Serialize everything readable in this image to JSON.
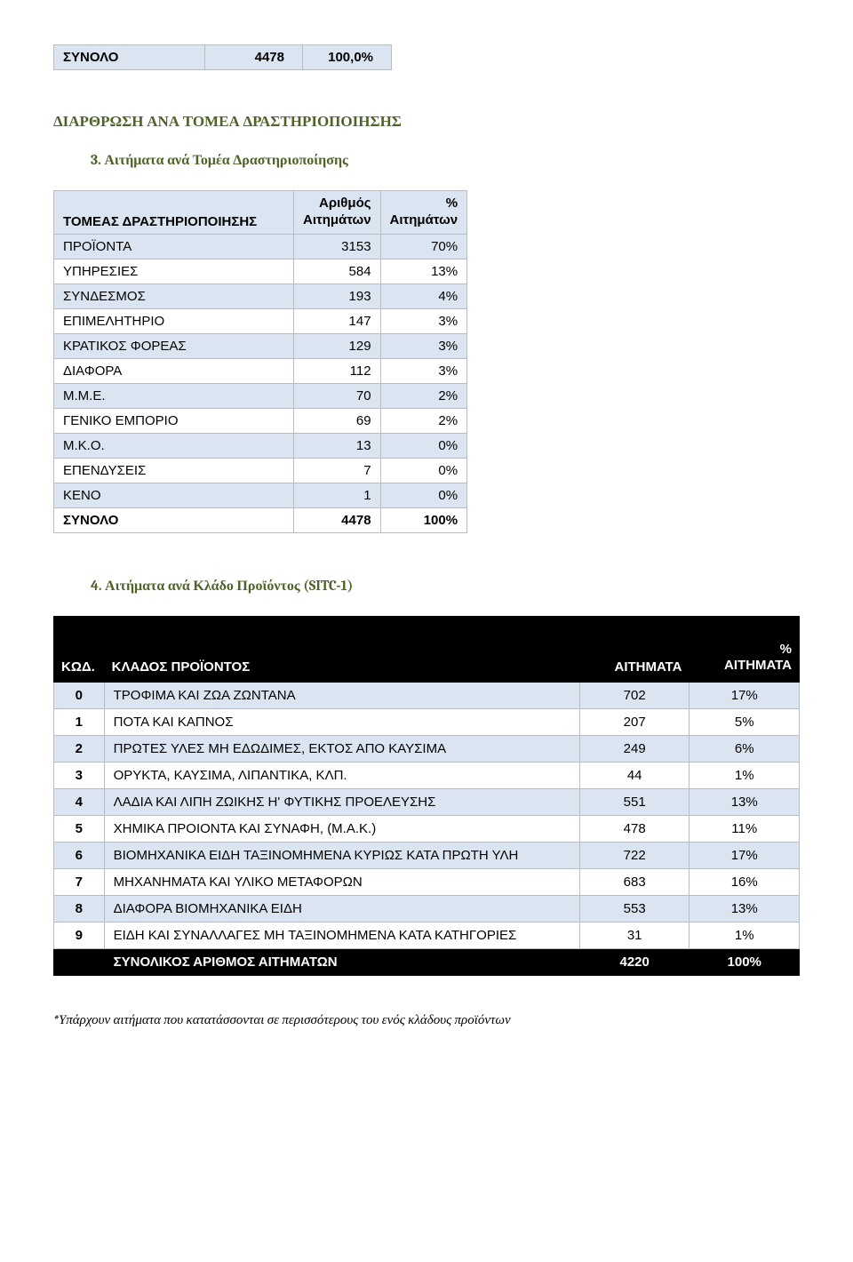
{
  "summary_row": {
    "label": "ΣΥΝΟΛΟ",
    "value": "4478",
    "pct": "100,0%"
  },
  "section1_title": "ΔΙΑΡΘΡΩΣΗ ΑΝΑ ΤΟΜΕΑ ΔΡΑΣΤΗΡΙΟΠΟΙΗΣΗΣ",
  "section1_sub": "3. Αιτήματα ανά Τομέα Δραστηριοποίησης",
  "sector_table": {
    "headers": {
      "name": "ΤΟΜΕΑΣ ΔΡΑΣΤΗΡΙΟΠΟΙΗΣΗΣ",
      "num": "Αριθμός\nΑιτημάτων",
      "pct": "%\nΑιτημάτων"
    },
    "rows": [
      {
        "name": "ΠΡΟΪΟΝΤΑ",
        "num": "3153",
        "pct": "70%"
      },
      {
        "name": "ΥΠΗΡΕΣΙΕΣ",
        "num": "584",
        "pct": "13%"
      },
      {
        "name": "ΣΥΝΔΕΣΜΟΣ",
        "num": "193",
        "pct": "4%"
      },
      {
        "name": "ΕΠΙΜΕΛΗΤΗΡΙΟ",
        "num": "147",
        "pct": "3%"
      },
      {
        "name": "ΚΡΑΤΙΚΟΣ ΦΟΡΕΑΣ",
        "num": "129",
        "pct": "3%"
      },
      {
        "name": "ΔΙΑΦΟΡΑ",
        "num": "112",
        "pct": "3%"
      },
      {
        "name": "Μ.Μ.Ε.",
        "num": "70",
        "pct": "2%"
      },
      {
        "name": "ΓΕΝΙΚΟ ΕΜΠΟΡΙΟ",
        "num": "69",
        "pct": "2%"
      },
      {
        "name": "Μ.Κ.Ο.",
        "num": "13",
        "pct": "0%"
      },
      {
        "name": "ΕΠΕΝΔΥΣΕΙΣ",
        "num": "7",
        "pct": "0%"
      },
      {
        "name": "ΚΕΝΟ",
        "num": "1",
        "pct": "0%"
      }
    ],
    "total": {
      "name": "ΣΥΝΟΛΟ",
      "num": "4478",
      "pct": "100%"
    }
  },
  "section2_sub": "4. Αιτήματα ανά Κλάδο Προϊόντος (SITC-1)",
  "product_table": {
    "headers": {
      "code": "ΚΩΔ.",
      "label": "ΚΛΑΔΟΣ ΠΡΟΪΟΝΤΟΣ",
      "a": "ΑΙΤΗΜΑΤΑ",
      "p": "%\nΑΙΤΗΜΑΤΑ"
    },
    "rows": [
      {
        "code": "0",
        "label": "ΤΡΟΦΙΜΑ ΚΑΙ ΖΩΑ ΖΩΝΤΑΝΑ",
        "a": "702",
        "p": "17%"
      },
      {
        "code": "1",
        "label": "ΠΟΤΑ ΚΑΙ ΚΑΠΝΟΣ",
        "a": "207",
        "p": "5%"
      },
      {
        "code": "2",
        "label": "ΠΡΩΤΕΣ ΥΛΕΣ ΜΗ ΕΔΩΔΙΜΕΣ, ΕΚΤΟΣ ΑΠΟ ΚΑΥΣΙΜΑ",
        "a": "249",
        "p": "6%"
      },
      {
        "code": "3",
        "label": "ΟΡΥΚΤΑ, ΚΑΥΣΙΜΑ, ΛΙΠΑΝΤΙΚΑ, ΚΛΠ.",
        "a": "44",
        "p": "1%"
      },
      {
        "code": "4",
        "label": "ΛΑΔΙΑ ΚΑΙ ΛΙΠΗ ΖΩΙΚΗΣ Η' ΦΥΤΙΚΗΣ ΠΡΟΕΛΕΥΣΗΣ",
        "a": "551",
        "p": "13%"
      },
      {
        "code": "5",
        "label": "ΧΗΜΙΚΑ ΠΡΟΙΟΝΤΑ ΚΑΙ ΣΥΝΑΦΗ, (Μ.Α.Κ.)",
        "a": "478",
        "p": "11%"
      },
      {
        "code": "6",
        "label": "ΒΙΟΜΗΧΑΝΙΚΑ ΕΙΔΗ ΤΑΞΙΝΟΜΗΜΕΝΑ ΚΥΡΙΩΣ ΚΑΤΑ ΠΡΩΤΗ ΥΛΗ",
        "a": "722",
        "p": "17%"
      },
      {
        "code": "7",
        "label": "ΜΗΧΑΝΗΜΑΤΑ ΚΑΙ ΥΛΙΚΟ ΜΕΤΑΦΟΡΩΝ",
        "a": "683",
        "p": "16%"
      },
      {
        "code": "8",
        "label": "ΔΙΑΦΟΡΑ ΒΙΟΜΗΧΑΝΙΚΑ ΕΙΔΗ",
        "a": "553",
        "p": "13%"
      },
      {
        "code": "9",
        "label": "ΕΙΔΗ ΚΑΙ ΣΥΝΑΛΛΑΓΕΣ ΜΗ ΤΑΞΙΝΟΜΗΜΕΝΑ ΚΑΤΑ ΚΑΤΗΓΟΡΙΕΣ",
        "a": "31",
        "p": "1%"
      }
    ],
    "total": {
      "label": "ΣΥΝΟΛΙΚΟΣ ΑΡΙΘΜΟΣ ΑΙΤΗΜΑΤΩΝ",
      "a": "4220",
      "p": "100%"
    }
  },
  "footnote": "*Υπάρχουν αιτήματα που κατατάσσονται σε περισσότερους του ενός κλάδους προϊόντων",
  "colors": {
    "band": "#dbe5f1",
    "border": "#b8bdc4",
    "heading": "#4f6228",
    "black": "#000000",
    "white": "#ffffff"
  }
}
